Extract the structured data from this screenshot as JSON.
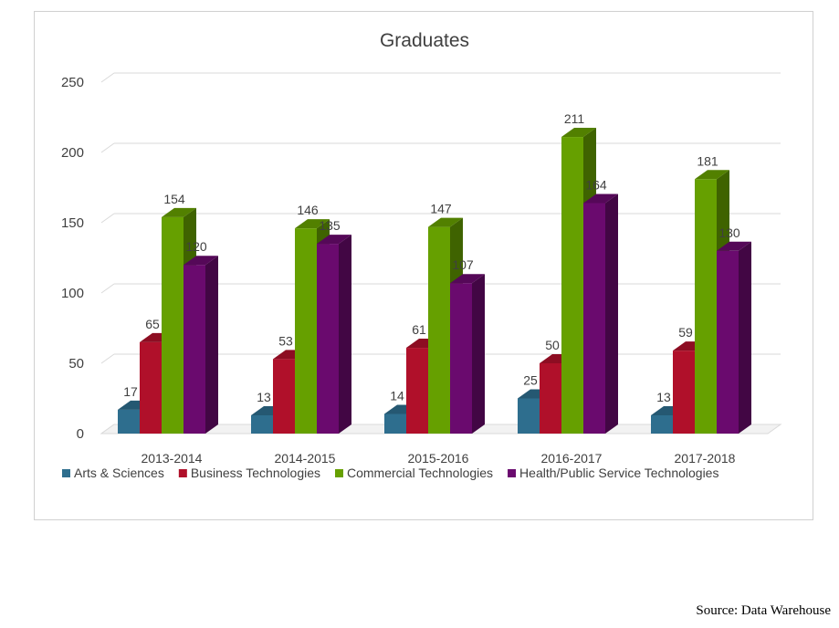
{
  "chart_data": {
    "type": "bar",
    "title": "Graduates",
    "xlabel": "",
    "ylabel": "",
    "ylim": [
      0,
      250
    ],
    "yticks": [
      0,
      50,
      100,
      150,
      200,
      250
    ],
    "grid": true,
    "legend_position": "bottom",
    "categories": [
      "2013-2014",
      "2014-2015",
      "2015-2016",
      "2016-2017",
      "2017-2018"
    ],
    "series": [
      {
        "name": "Arts & Sciences",
        "color": "#2e6e8e",
        "values": [
          17,
          13,
          14,
          25,
          13
        ]
      },
      {
        "name": "Business Technologies",
        "color": "#b0102a",
        "values": [
          65,
          53,
          61,
          50,
          59
        ]
      },
      {
        "name": "Commercial Technologies",
        "color": "#66a000",
        "values": [
          154,
          146,
          147,
          211,
          181
        ]
      },
      {
        "name": "Health/Public Service Technologies",
        "color": "#6a0a6e",
        "values": [
          120,
          135,
          107,
          164,
          130
        ]
      }
    ]
  },
  "source_note": "Source: Data Warehouse"
}
